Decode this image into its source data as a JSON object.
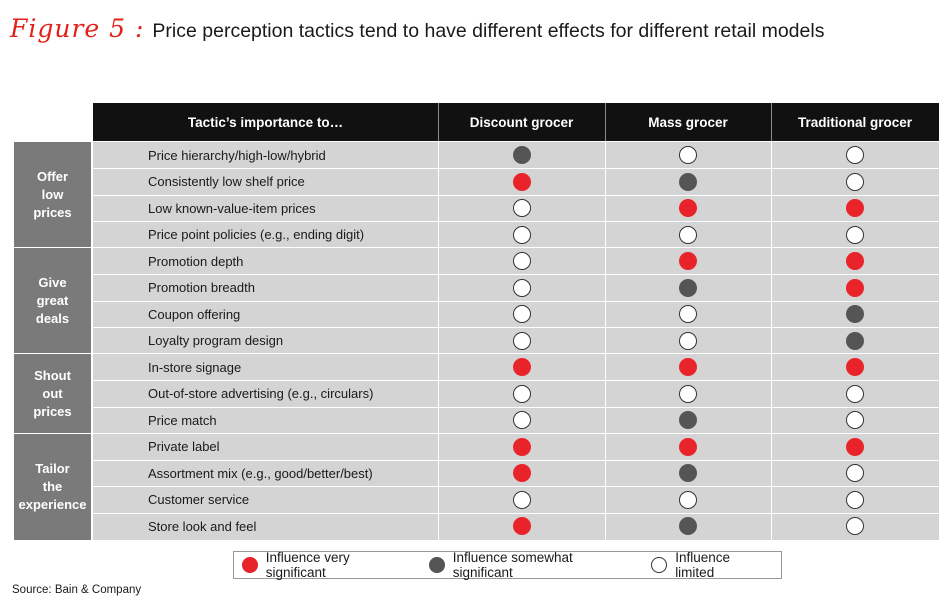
{
  "title": {
    "figure_label": "Figure 5 :",
    "text": "Price perception tactics tend to have different effects for different retail models"
  },
  "chart_data": {
    "type": "table",
    "header": {
      "row_label": "Tactic’s importance to…",
      "columns": [
        "Discount grocer",
        "Mass grocer",
        "Traditional grocer"
      ]
    },
    "groups": [
      {
        "label": "Offer\nlow\nprices",
        "rows": [
          {
            "tactic": "Price hierarchy/high-low/hybrid",
            "values": [
              "somewhat",
              "limited",
              "limited"
            ]
          },
          {
            "tactic": "Consistently low shelf price",
            "values": [
              "very",
              "somewhat",
              "limited"
            ]
          },
          {
            "tactic": "Low known-value-item prices",
            "values": [
              "limited",
              "very",
              "very"
            ]
          },
          {
            "tactic": "Price point policies (e.g., ending digit)",
            "values": [
              "limited",
              "limited",
              "limited"
            ]
          }
        ]
      },
      {
        "label": "Give\ngreat\ndeals",
        "rows": [
          {
            "tactic": "Promotion depth",
            "values": [
              "limited",
              "very",
              "very"
            ]
          },
          {
            "tactic": "Promotion breadth",
            "values": [
              "limited",
              "somewhat",
              "very"
            ]
          },
          {
            "tactic": "Coupon offering",
            "values": [
              "limited",
              "limited",
              "somewhat"
            ]
          },
          {
            "tactic": "Loyalty program design",
            "values": [
              "limited",
              "limited",
              "somewhat"
            ]
          }
        ]
      },
      {
        "label": "Shout\nout\nprices",
        "rows": [
          {
            "tactic": "In-store signage",
            "values": [
              "very",
              "very",
              "very"
            ]
          },
          {
            "tactic": "Out-of-store advertising (e.g., circulars)",
            "values": [
              "limited",
              "limited",
              "limited"
            ]
          },
          {
            "tactic": "Price match",
            "values": [
              "limited",
              "somewhat",
              "limited"
            ]
          }
        ]
      },
      {
        "label": "Tailor\nthe\nexperience",
        "rows": [
          {
            "tactic": "Private label",
            "values": [
              "very",
              "very",
              "very"
            ]
          },
          {
            "tactic": "Assortment mix (e.g., good/better/best)",
            "values": [
              "very",
              "somewhat",
              "limited"
            ]
          },
          {
            "tactic": "Customer service",
            "values": [
              "limited",
              "limited",
              "limited"
            ]
          },
          {
            "tactic": "Store look and feel",
            "values": [
              "very",
              "somewhat",
              "limited"
            ]
          }
        ]
      }
    ],
    "legend": [
      {
        "key": "very",
        "label": "Influence very significant"
      },
      {
        "key": "somewhat",
        "label": "Influence somewhat significant"
      },
      {
        "key": "limited",
        "label": "Influence limited"
      }
    ]
  },
  "colors": {
    "very": "#e8242a",
    "somewhat": "#555555",
    "limited": "#ffffff",
    "header_bg": "#111111",
    "group_bg": "#7a7a7a",
    "row_bg": "#d4d4d4",
    "accent": "#e32119"
  },
  "source": "Source: Bain & Company"
}
